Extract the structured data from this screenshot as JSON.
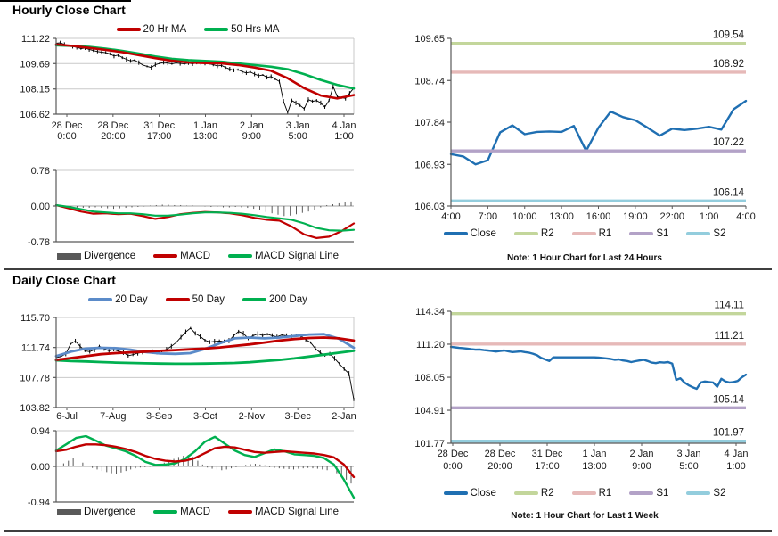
{
  "sections": {
    "hourly": {
      "title": "Hourly Close Chart"
    },
    "daily": {
      "title": "Daily Close Chart"
    }
  },
  "colors": {
    "ma_red": "#C00000",
    "ma_green": "#00B050",
    "ma_blue": "#5B8BC9",
    "close_blue": "#1F6FB2",
    "divergence_gray": "#595959",
    "r2": "#C3D69B",
    "r1": "#E6B9B8",
    "s1": "#B3A2C7",
    "s2": "#93CDDD"
  },
  "chart_data": [
    {
      "id": "hourly-price",
      "type": "line",
      "y_ticks": [
        "111.22",
        "109.69",
        "108.15",
        "106.62"
      ],
      "ylim": [
        106.62,
        111.22
      ],
      "x_ticks": [
        [
          "28 Dec",
          "0:00"
        ],
        [
          "28 Dec",
          "20:00"
        ],
        [
          "31 Dec",
          "17:00"
        ],
        [
          "1 Jan",
          "13:00"
        ],
        [
          "2 Jan",
          "9:00"
        ],
        [
          "3 Jan",
          "5:00"
        ],
        [
          "4 Jan",
          "1:00"
        ]
      ],
      "legend": [
        {
          "label": "20 Hr MA",
          "color": "#C00000",
          "swatch": "line"
        },
        {
          "label": "50 Hrs MA",
          "color": "#00B050",
          "swatch": "line"
        }
      ],
      "series": [
        {
          "name": "Close",
          "style": "candle",
          "color": "#000000",
          "wick": 0.14,
          "values": [
            110.92,
            110.95,
            110.85,
            110.78,
            110.72,
            110.68,
            110.6,
            110.63,
            110.55,
            110.48,
            110.42,
            110.38,
            110.35,
            110.28,
            110.15,
            110.2,
            110.05,
            109.95,
            109.85,
            109.9,
            109.75,
            109.6,
            109.52,
            109.45,
            109.62,
            109.7,
            109.76,
            109.72,
            109.68,
            109.73,
            109.7,
            109.67,
            109.72,
            109.68,
            109.73,
            109.7,
            109.72,
            109.68,
            109.62,
            109.55,
            109.58,
            109.45,
            109.35,
            109.28,
            109.32,
            109.2,
            109.12,
            109.18,
            109.05,
            108.95,
            109.0,
            108.85,
            108.9,
            108.75,
            108.6,
            107.4,
            106.72,
            107.45,
            107.3,
            107.15,
            106.95,
            107.5,
            107.4,
            107.45,
            107.3,
            107.05,
            107.45,
            108.3,
            107.7,
            107.62,
            107.58,
            107.9,
            108.2
          ]
        },
        {
          "name": "50 Hrs MA",
          "style": "line",
          "color": "#00B050",
          "width": 2.6,
          "values": [
            110.8,
            110.76,
            110.7,
            110.6,
            110.46,
            110.3,
            110.12,
            109.98,
            109.9,
            109.85,
            109.8,
            109.7,
            109.6,
            109.5,
            109.35,
            109.05,
            108.7,
            108.4,
            108.18
          ]
        },
        {
          "name": "20 Hr MA",
          "style": "line",
          "color": "#C00000",
          "width": 2.6,
          "values": [
            110.85,
            110.76,
            110.64,
            110.52,
            110.38,
            110.2,
            110.02,
            109.86,
            109.76,
            109.72,
            109.7,
            109.6,
            109.45,
            109.25,
            108.8,
            108.2,
            107.75,
            107.58,
            107.78
          ]
        }
      ]
    },
    {
      "id": "hourly-macd",
      "type": "line",
      "y_ticks": [
        "0.78",
        "0.00",
        "-0.78"
      ],
      "ylim": [
        -0.78,
        0.78
      ],
      "x_ticks": [],
      "legend": [
        {
          "label": "Divergence",
          "color": "#595959",
          "swatch": "bar"
        },
        {
          "label": "MACD",
          "color": "#C00000",
          "swatch": "line"
        },
        {
          "label": "MACD Signal Line",
          "color": "#00B050",
          "swatch": "line"
        }
      ],
      "series": [
        {
          "name": "Divergence",
          "style": "bars",
          "color": "#595959",
          "values": [
            0.0,
            -0.01,
            -0.02,
            -0.03,
            -0.04,
            -0.04,
            -0.03,
            -0.04,
            -0.05,
            -0.06,
            -0.05,
            -0.04,
            -0.03,
            -0.02,
            -0.01,
            0.01,
            0.02,
            0.03,
            0.03,
            0.02,
            0.02,
            0.01,
            0.01,
            0.0,
            -0.01,
            -0.02,
            -0.02,
            -0.03,
            -0.03,
            -0.02,
            -0.03,
            -0.04,
            -0.06,
            -0.09,
            -0.13,
            -0.16,
            -0.19,
            -0.22,
            -0.21,
            -0.18,
            -0.15,
            -0.12,
            -0.08,
            -0.03,
            0.02,
            0.04,
            0.06,
            0.08,
            0.1
          ]
        },
        {
          "name": "MACD",
          "style": "line",
          "color": "#C00000",
          "width": 2.2,
          "values": [
            0.02,
            -0.05,
            -0.12,
            -0.17,
            -0.16,
            -0.18,
            -0.17,
            -0.22,
            -0.28,
            -0.24,
            -0.18,
            -0.15,
            -0.13,
            -0.14,
            -0.16,
            -0.2,
            -0.26,
            -0.3,
            -0.32,
            -0.45,
            -0.62,
            -0.7,
            -0.67,
            -0.55,
            -0.38
          ]
        },
        {
          "name": "MACD Signal Line",
          "style": "line",
          "color": "#00B050",
          "width": 2.2,
          "values": [
            0.02,
            -0.02,
            -0.07,
            -0.12,
            -0.14,
            -0.16,
            -0.16,
            -0.18,
            -0.21,
            -0.21,
            -0.19,
            -0.16,
            -0.14,
            -0.14,
            -0.15,
            -0.17,
            -0.2,
            -0.24,
            -0.27,
            -0.3,
            -0.38,
            -0.48,
            -0.53,
            -0.54,
            -0.52
          ]
        }
      ]
    },
    {
      "id": "daily-price",
      "type": "line",
      "y_ticks": [
        "115.70",
        "111.74",
        "107.78",
        "103.82"
      ],
      "ylim": [
        103.82,
        115.7
      ],
      "x_ticks": [
        "6-Jul",
        "7-Aug",
        "3-Sep",
        "3-Oct",
        "2-Nov",
        "3-Dec",
        "2-Jan"
      ],
      "legend": [
        {
          "label": "20 Day",
          "color": "#5B8BC9",
          "swatch": "line"
        },
        {
          "label": "50 Day",
          "color": "#C00000",
          "swatch": "line"
        },
        {
          "label": "200 Day",
          "color": "#00B050",
          "swatch": "line"
        }
      ],
      "series": [
        {
          "name": "Close",
          "style": "candle",
          "color": "#000000",
          "wick": 0.33,
          "values": [
            110.4,
            110.55,
            110.9,
            112.2,
            112.6,
            111.9,
            111.3,
            111.2,
            111.45,
            111.9,
            111.55,
            111.3,
            111.45,
            111.25,
            111.1,
            110.65,
            110.8,
            111.0,
            111.1,
            111.15,
            111.2,
            111.1,
            111.25,
            111.5,
            111.9,
            112.4,
            113.1,
            113.8,
            114.3,
            113.6,
            113.2,
            112.7,
            112.45,
            112.55,
            112.6,
            112.55,
            112.65,
            113.3,
            113.85,
            113.6,
            112.95,
            113.3,
            113.55,
            113.35,
            113.5,
            113.3,
            113.15,
            113.4,
            113.3,
            113.2,
            113.35,
            113.25,
            112.8,
            112.4,
            111.6,
            111.05,
            110.7,
            110.9,
            110.3,
            109.6,
            108.9,
            108.3,
            104.9
          ]
        },
        {
          "name": "200 Day",
          "style": "line",
          "color": "#00B050",
          "width": 2.8,
          "values": [
            110.05,
            109.95,
            109.9,
            109.82,
            109.75,
            109.7,
            109.65,
            109.62,
            109.6,
            109.6,
            109.62,
            109.65,
            109.7,
            109.8,
            109.95,
            110.1,
            110.3,
            110.55,
            110.8,
            111.05,
            111.3
          ]
        },
        {
          "name": "20 Day",
          "style": "line",
          "color": "#5B8BC9",
          "width": 2.8,
          "values": [
            110.6,
            111.2,
            111.6,
            111.7,
            111.65,
            111.45,
            111.15,
            110.95,
            110.9,
            111.0,
            111.55,
            112.3,
            112.95,
            113.05,
            112.95,
            113.05,
            113.25,
            113.45,
            113.5,
            112.9,
            111.7
          ]
        },
        {
          "name": "50 Day",
          "style": "line",
          "color": "#C00000",
          "width": 2.8,
          "values": [
            110.1,
            110.35,
            110.6,
            110.85,
            111.0,
            111.1,
            111.2,
            111.3,
            111.4,
            111.5,
            111.6,
            111.75,
            111.95,
            112.15,
            112.4,
            112.65,
            112.85,
            113.0,
            113.05,
            112.95,
            112.65
          ]
        }
      ]
    },
    {
      "id": "daily-macd",
      "type": "line",
      "y_ticks": [
        "0.94",
        "0.00",
        "-0.94"
      ],
      "ylim": [
        -0.94,
        0.94
      ],
      "x_ticks": [],
      "legend": [
        {
          "label": "Divergence",
          "color": "#595959",
          "swatch": "bar"
        },
        {
          "label": "MACD",
          "color": "#00B050",
          "swatch": "line"
        },
        {
          "label": "MACD Signal Line",
          "color": "#C00000",
          "swatch": "line"
        }
      ],
      "series": [
        {
          "name": "Divergence",
          "style": "bars",
          "color": "#595959",
          "values": [
            0.02,
            0.08,
            0.15,
            0.22,
            0.18,
            0.1,
            0.02,
            -0.04,
            -0.08,
            -0.12,
            -0.15,
            -0.18,
            -0.2,
            -0.16,
            -0.12,
            -0.08,
            -0.05,
            -0.03,
            -0.02,
            -0.01,
            0.02,
            0.05,
            0.1,
            0.15,
            0.2,
            0.25,
            0.28,
            0.3,
            0.25,
            0.15,
            0.05,
            -0.03,
            -0.06,
            -0.08,
            -0.1,
            -0.08,
            -0.05,
            -0.02,
            0.02,
            0.04,
            0.06,
            0.07,
            0.05,
            0.03,
            -0.02,
            -0.04,
            -0.05,
            -0.06,
            -0.07,
            -0.08,
            -0.06,
            -0.05,
            -0.04,
            -0.05,
            -0.06,
            -0.08,
            -0.1,
            -0.14,
            -0.18,
            -0.25,
            -0.35,
            -0.45
          ]
        },
        {
          "name": "MACD",
          "style": "line",
          "color": "#00B050",
          "width": 2.4,
          "values": [
            0.42,
            0.58,
            0.75,
            0.8,
            0.68,
            0.55,
            0.48,
            0.4,
            0.28,
            0.12,
            0.04,
            0.05,
            0.08,
            0.2,
            0.4,
            0.65,
            0.78,
            0.6,
            0.42,
            0.3,
            0.25,
            0.35,
            0.45,
            0.4,
            0.32,
            0.3,
            0.28,
            0.22,
            0.05,
            -0.35,
            -0.82
          ]
        },
        {
          "name": "MACD Signal Line",
          "style": "line",
          "color": "#C00000",
          "width": 2.4,
          "values": [
            0.4,
            0.44,
            0.52,
            0.58,
            0.58,
            0.56,
            0.52,
            0.46,
            0.38,
            0.28,
            0.2,
            0.15,
            0.13,
            0.15,
            0.22,
            0.35,
            0.48,
            0.52,
            0.5,
            0.44,
            0.38,
            0.36,
            0.38,
            0.4,
            0.38,
            0.36,
            0.34,
            0.3,
            0.24,
            0.05,
            -0.28
          ]
        }
      ]
    },
    {
      "id": "right-top",
      "type": "line",
      "note": "Note: 1 Hour Chart for Last 24 Hours",
      "y_ticks": [
        "109.65",
        "108.74",
        "107.84",
        "106.93",
        "106.03"
      ],
      "ylim": [
        106.03,
        109.65
      ],
      "x_ticks": [
        "4:00",
        "7:00",
        "10:00",
        "13:00",
        "16:00",
        "19:00",
        "22:00",
        "1:00",
        "4:00"
      ],
      "legend": [
        {
          "label": "Close",
          "color": "#1F6FB2",
          "swatch": "line"
        },
        {
          "label": "R2",
          "color": "#C3D69B",
          "swatch": "line"
        },
        {
          "label": "R1",
          "color": "#E6B9B8",
          "swatch": "line"
        },
        {
          "label": "S1",
          "color": "#B3A2C7",
          "swatch": "line"
        },
        {
          "label": "S2",
          "color": "#93CDDD",
          "swatch": "line"
        }
      ],
      "levels": [
        {
          "name": "R2",
          "value": 109.54,
          "label": "109.54",
          "color": "#C3D69B"
        },
        {
          "name": "R1",
          "value": 108.92,
          "label": "108.92",
          "color": "#E6B9B8"
        },
        {
          "name": "S1",
          "value": 107.22,
          "label": "107.22",
          "color": "#B3A2C7"
        },
        {
          "name": "S2",
          "value": 106.14,
          "label": "106.14",
          "color": "#93CDDD"
        }
      ],
      "series": [
        {
          "name": "Close",
          "style": "line",
          "color": "#1F6FB2",
          "width": 2.4,
          "values": [
            107.15,
            107.1,
            106.93,
            107.02,
            107.62,
            107.77,
            107.58,
            107.63,
            107.64,
            107.63,
            107.76,
            107.22,
            107.72,
            108.07,
            107.95,
            107.88,
            107.72,
            107.55,
            107.7,
            107.67,
            107.7,
            107.74,
            107.68,
            108.12,
            108.3
          ]
        }
      ]
    },
    {
      "id": "right-bottom",
      "type": "line",
      "note": "Note: 1 Hour Chart for Last 1 Week",
      "y_ticks": [
        "114.34",
        "111.20",
        "108.05",
        "104.91",
        "101.77"
      ],
      "ylim": [
        101.77,
        114.34
      ],
      "x_ticks": [
        [
          "28 Dec",
          "0:00"
        ],
        [
          "28 Dec",
          "20:00"
        ],
        [
          "31 Dec",
          "17:00"
        ],
        [
          "1 Jan",
          "13:00"
        ],
        [
          "2 Jan",
          "9:00"
        ],
        [
          "3 Jan",
          "5:00"
        ],
        [
          "4 Jan",
          "1:00"
        ]
      ],
      "legend": [
        {
          "label": "Close",
          "color": "#1F6FB2",
          "swatch": "line"
        },
        {
          "label": "R2",
          "color": "#C3D69B",
          "swatch": "line"
        },
        {
          "label": "R1",
          "color": "#E6B9B8",
          "swatch": "line"
        },
        {
          "label": "S1",
          "color": "#B3A2C7",
          "swatch": "line"
        },
        {
          "label": "S2",
          "color": "#93CDDD",
          "swatch": "line"
        }
      ],
      "levels": [
        {
          "name": "R2",
          "value": 114.11,
          "label": "114.11",
          "color": "#C3D69B"
        },
        {
          "name": "R1",
          "value": 111.21,
          "label": "111.21",
          "color": "#E6B9B8"
        },
        {
          "name": "S1",
          "value": 105.14,
          "label": "105.14",
          "color": "#B3A2C7"
        },
        {
          "name": "S2",
          "value": 101.97,
          "label": "101.97",
          "color": "#93CDDD"
        }
      ],
      "series": [
        {
          "name": "Close",
          "style": "line",
          "color": "#1F6FB2",
          "width": 2.4,
          "values": [
            110.95,
            110.9,
            110.85,
            110.82,
            110.78,
            110.72,
            110.68,
            110.7,
            110.64,
            110.6,
            110.55,
            110.5,
            110.55,
            110.6,
            110.52,
            110.45,
            110.48,
            110.52,
            110.45,
            110.4,
            110.3,
            110.15,
            109.9,
            109.75,
            109.6,
            109.95,
            109.95,
            109.95,
            109.95,
            109.95,
            109.95,
            109.95,
            109.95,
            109.95,
            109.95,
            109.95,
            109.92,
            109.88,
            109.85,
            109.8,
            109.72,
            109.75,
            109.65,
            109.6,
            109.5,
            109.58,
            109.65,
            109.72,
            109.6,
            109.45,
            109.4,
            109.48,
            109.45,
            109.5,
            109.35,
            107.8,
            107.95,
            107.55,
            107.3,
            107.1,
            106.95,
            107.55,
            107.65,
            107.6,
            107.55,
            107.15,
            107.9,
            107.65,
            107.55,
            107.6,
            107.7,
            108.05,
            108.3
          ]
        }
      ]
    }
  ]
}
